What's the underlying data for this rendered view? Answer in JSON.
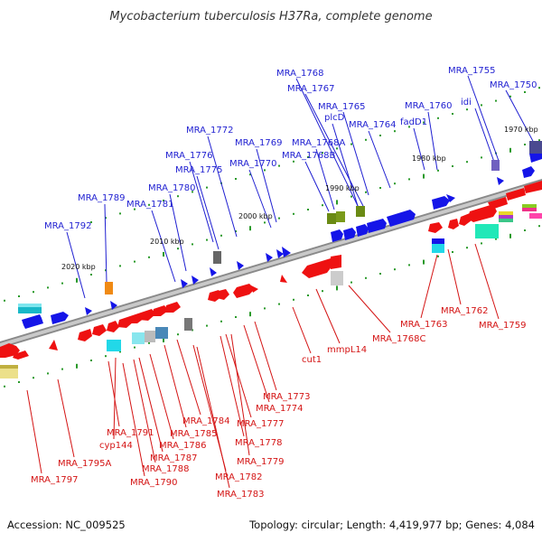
{
  "title": "Mycobacterium tuberculosis H37Ra, complete genome",
  "footer": {
    "accession": "Accession: NC_009525",
    "summary": "Topology: circular; Length: 4,419,977 bp; Genes: 4,084"
  },
  "colors": {
    "forward": "#1515e8",
    "reverse": "#ee1111",
    "up_label": "#1f1fd1",
    "down_label": "#d41414",
    "backbone": "#888888",
    "tick": "#2a9a2a"
  },
  "scale_labels": [
    "1970 kbp",
    "1980 kbp",
    "1990 kbp",
    "2000 kbp",
    "2010 kbp",
    "2020 kbp"
  ],
  "upper_labels": [
    "MRA_1768",
    "MRA_1767",
    "MRA_1755",
    "MRA_1750",
    "MRA_1765",
    "idi",
    "MRA_1760",
    "plcD",
    "MRA_1764",
    "fadD1",
    "MRA_1772",
    "MRA_1769",
    "MRA_1768A",
    "MRA_1776",
    "MRA_1768B",
    "MRA_1770",
    "MRA_1775",
    "MRA_1789",
    "MRA_1780",
    "MRA_1781",
    "MRA_1792"
  ],
  "lower_labels": [
    "MRA_1763",
    "MRA_1762",
    "MRA_1759",
    "mmpL14",
    "MRA_1768C",
    "cut1",
    "MRA_1773",
    "MRA_1774",
    "MRA_1784",
    "MRA_1777",
    "MRA_1791",
    "MRA_1785",
    "cyp144",
    "MRA_1786",
    "MRA_1778",
    "MRA_1795A",
    "MRA_1787",
    "MRA_1788",
    "MRA_1779",
    "MRA_1797",
    "MRA_1790",
    "MRA_1782",
    "MRA_1783"
  ]
}
